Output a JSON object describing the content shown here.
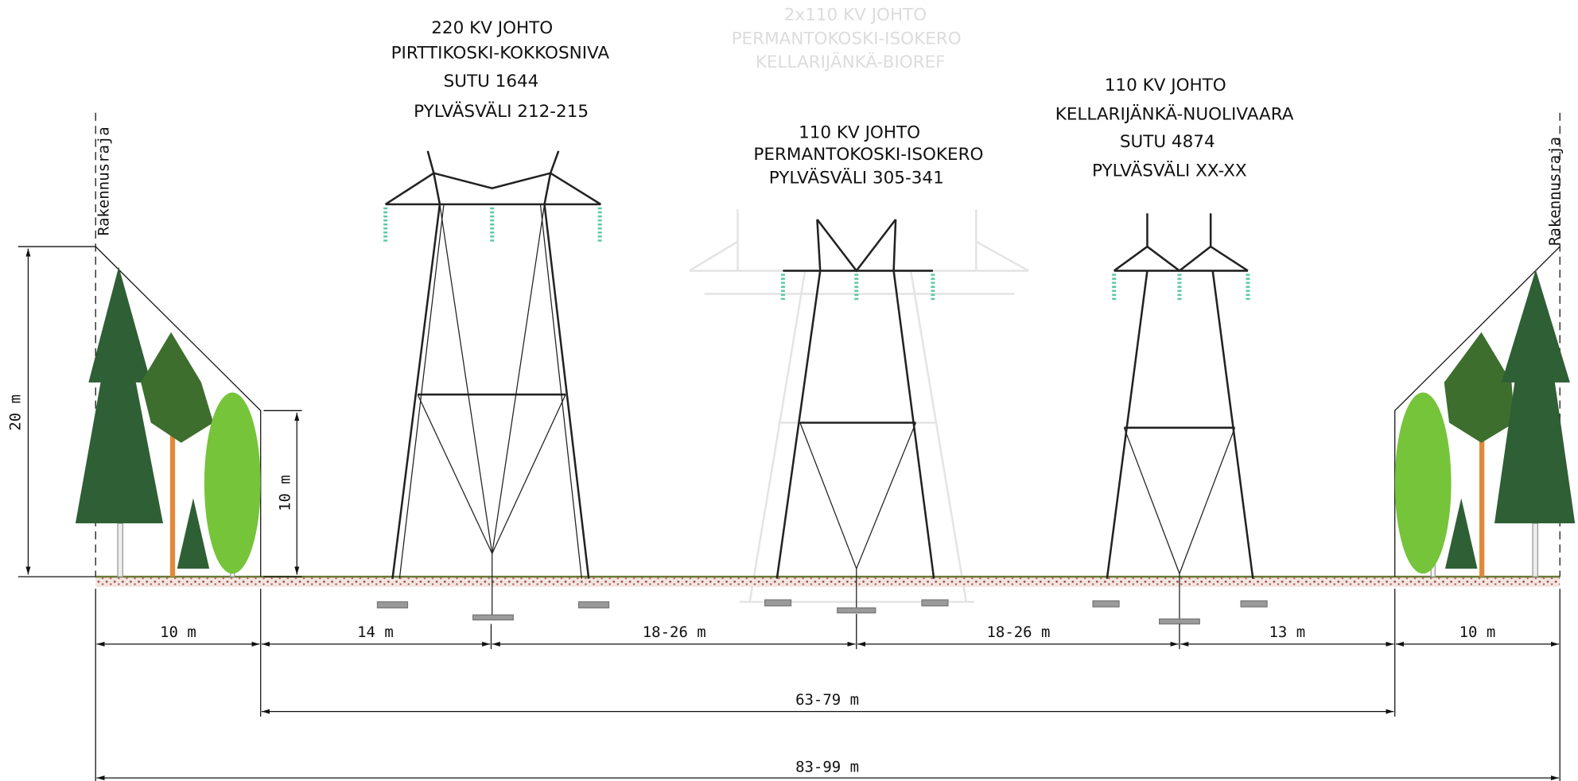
{
  "towers": [
    {
      "lines": [
        "220 KV JOHTO",
        "PIRTTIKOSKI-KOKKOSNIVA",
        "SUTU 1644",
        "PYLVÄSVÄLI 212-215"
      ]
    },
    {
      "lines": [
        "2x110 KV JOHTO",
        "PERMANTOKOSKI-ISOKERO",
        "KELLARIJÄNKÄ-BIOREF"
      ]
    },
    {
      "lines": [
        "110 KV JOHTO",
        "PERMANTOKOSKI-ISOKERO",
        "PYLVÄSVÄLI 305-341"
      ]
    },
    {
      "lines": [
        "110 KV JOHTO",
        "KELLARIJÄNKÄ-NUOLIVAARA",
        "SUTU 4874",
        "PYLVÄSVÄLI XX-XX"
      ]
    }
  ],
  "boundary_labels": [
    "Rakennusraja",
    "Rakennusraja"
  ],
  "heights": [
    "20 m",
    "10 m"
  ],
  "dimensions": [
    "10 m",
    "14 m",
    "18-26 m",
    "18-26 m",
    "13 m",
    "10 m"
  ],
  "totals": [
    "63-79 m",
    "83-99 m"
  ]
}
